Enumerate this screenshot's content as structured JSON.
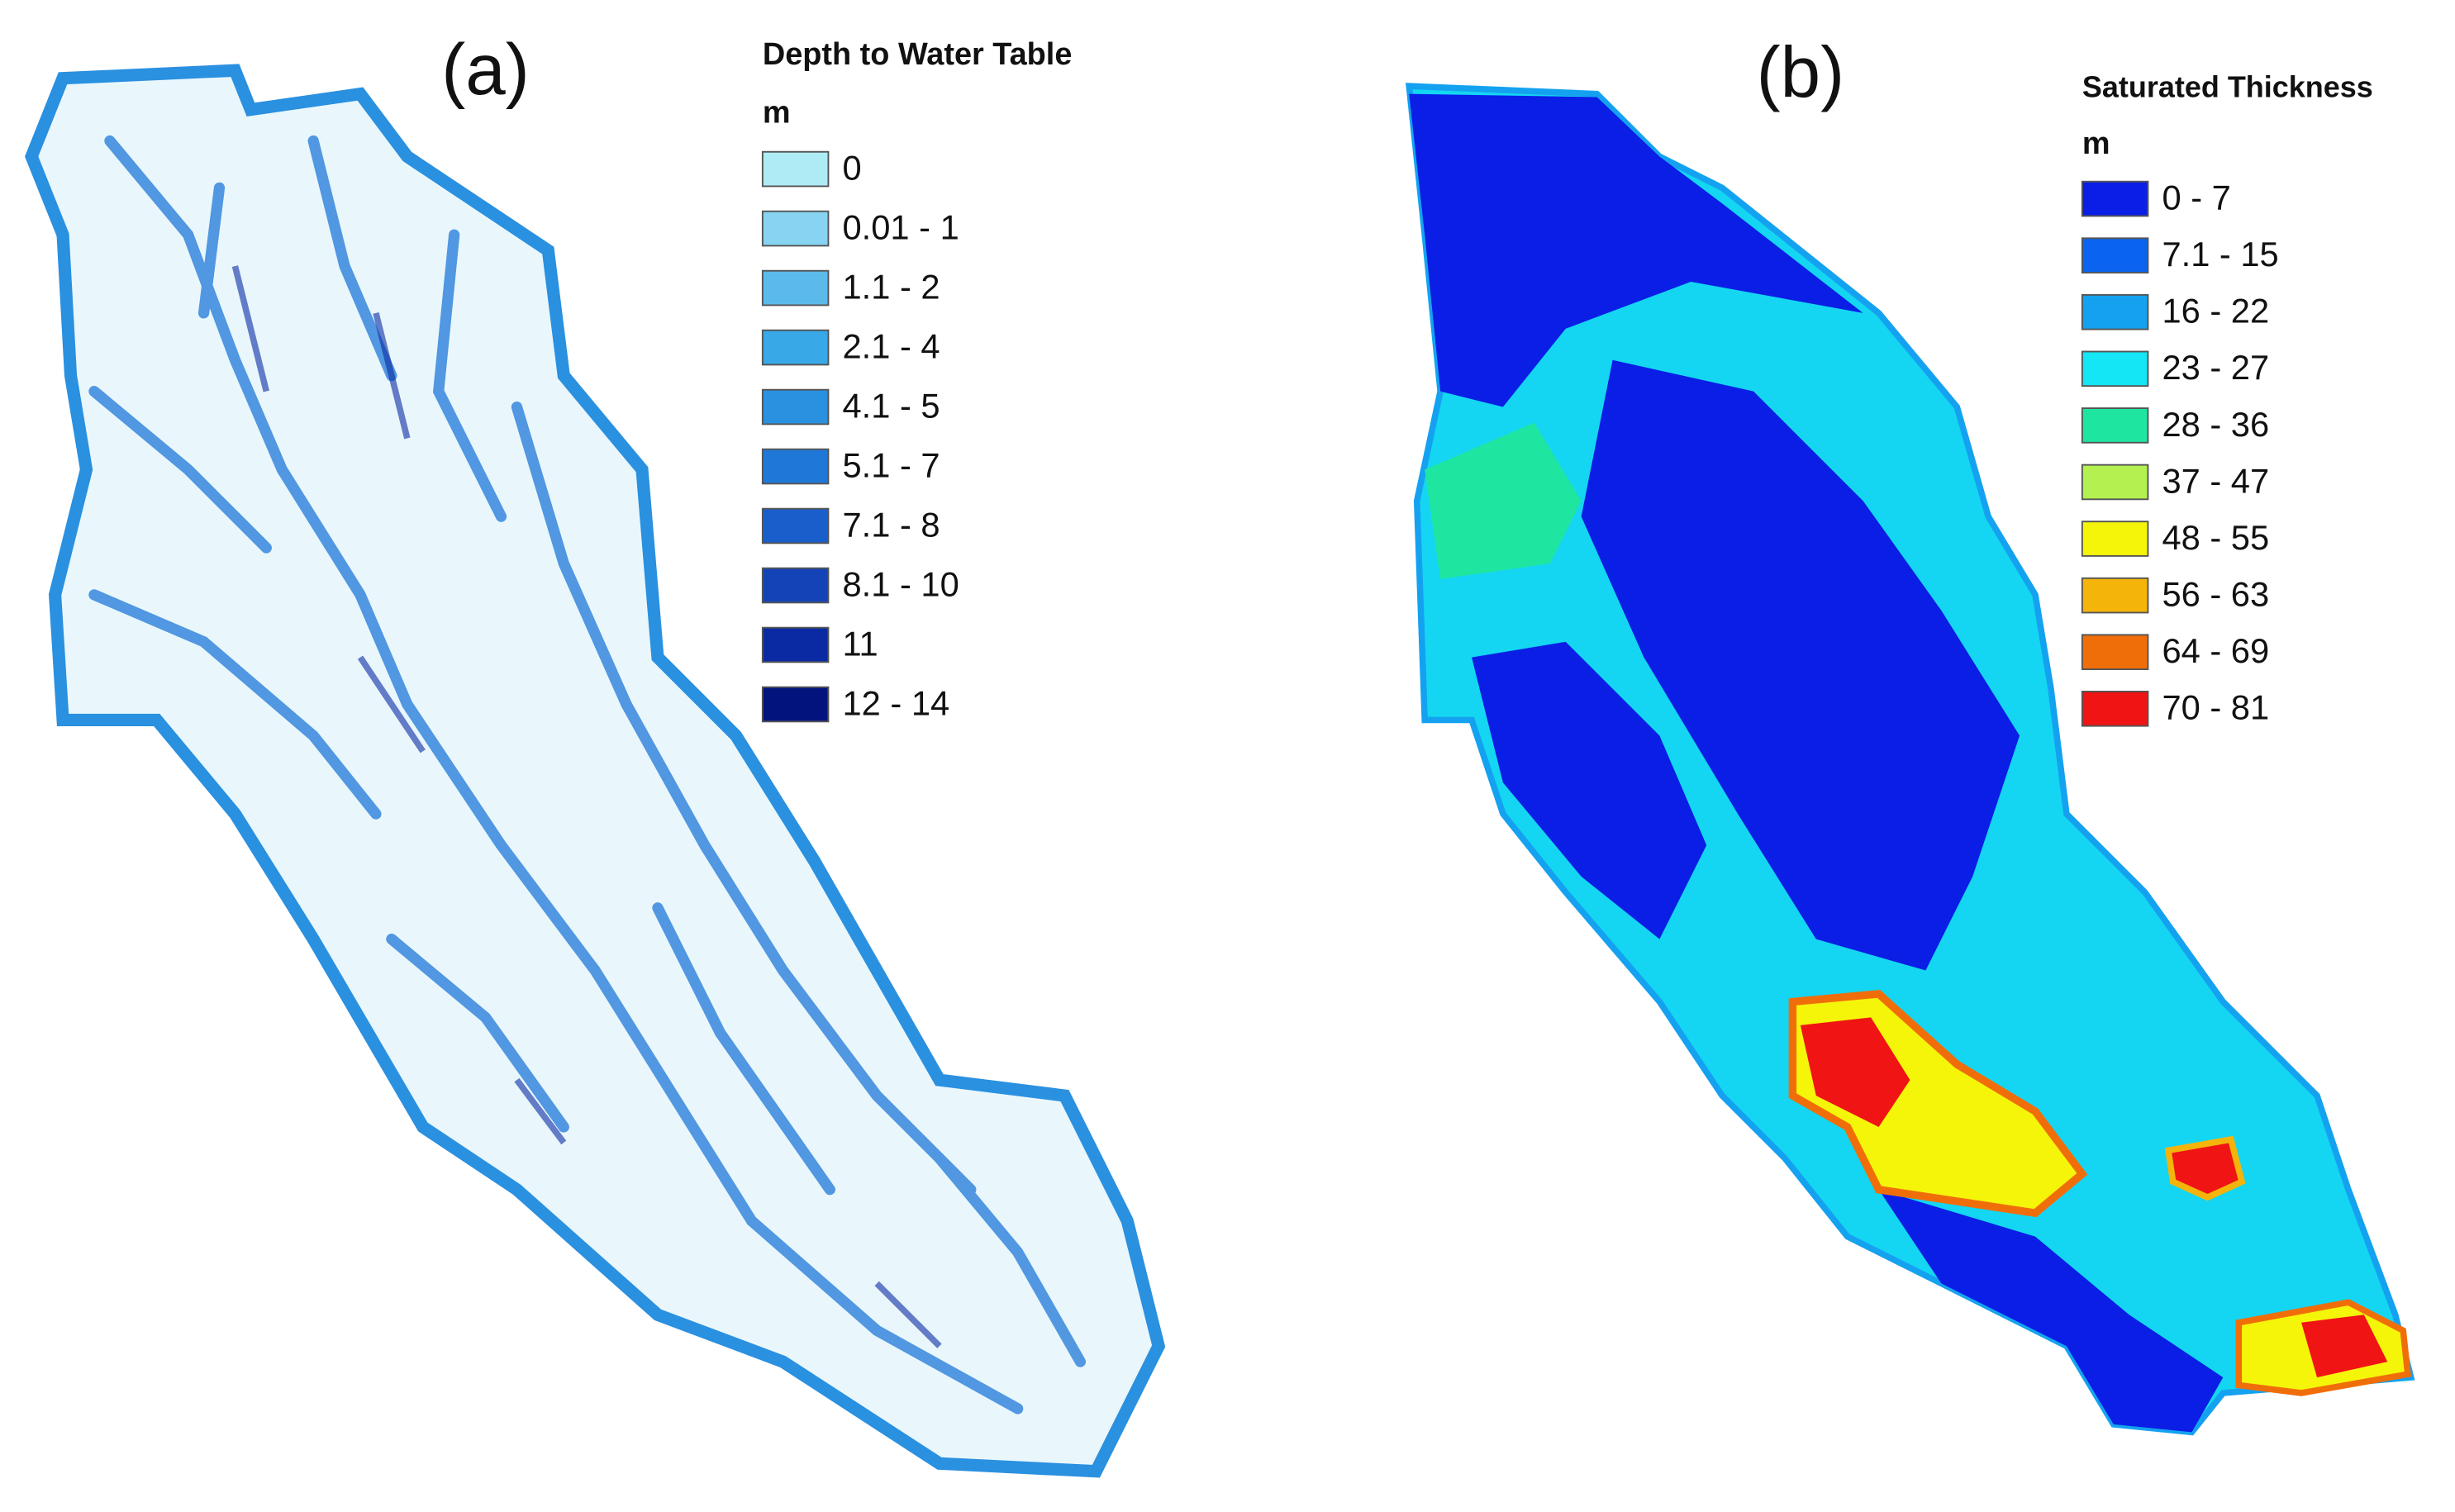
{
  "panels": [
    {
      "label": "(a)",
      "legend": {
        "title": "Depth to Water Table",
        "unit": "m",
        "entries": [
          {
            "label": "0",
            "color": "#aeecf5"
          },
          {
            "label": "0.01 - 1",
            "color": "#86d4f1"
          },
          {
            "label": "1.1 - 2",
            "color": "#5cbaeb"
          },
          {
            "label": "2.1 - 4",
            "color": "#38a8e7"
          },
          {
            "label": "4.1 - 5",
            "color": "#2a90e0"
          },
          {
            "label": "5.1 - 7",
            "color": "#1f78d8"
          },
          {
            "label": "7.1 - 8",
            "color": "#195ecb"
          },
          {
            "label": "8.1 - 10",
            "color": "#1343b6"
          },
          {
            "label": "11",
            "color": "#0a2aa4"
          },
          {
            "label": "12 - 14",
            "color": "#02137e"
          }
        ]
      }
    },
    {
      "label": "(b)",
      "legend": {
        "title": "Saturated Thickness",
        "unit": "m",
        "entries": [
          {
            "label": "0 - 7",
            "color": "#0a1ee6"
          },
          {
            "label": "7.1 - 15",
            "color": "#0a64f0"
          },
          {
            "label": "16 - 22",
            "color": "#14a2f0"
          },
          {
            "label": "23 - 27",
            "color": "#14e6f5"
          },
          {
            "label": "28 - 36",
            "color": "#1ee6a0"
          },
          {
            "label": "37 - 47",
            "color": "#b4f050"
          },
          {
            "label": "48 - 55",
            "color": "#f5f50a"
          },
          {
            "label": "56 - 63",
            "color": "#f5b40a"
          },
          {
            "label": "64 - 69",
            "color": "#f06e0a"
          },
          {
            "label": "70 - 81",
            "color": "#f01414"
          }
        ]
      }
    }
  ]
}
